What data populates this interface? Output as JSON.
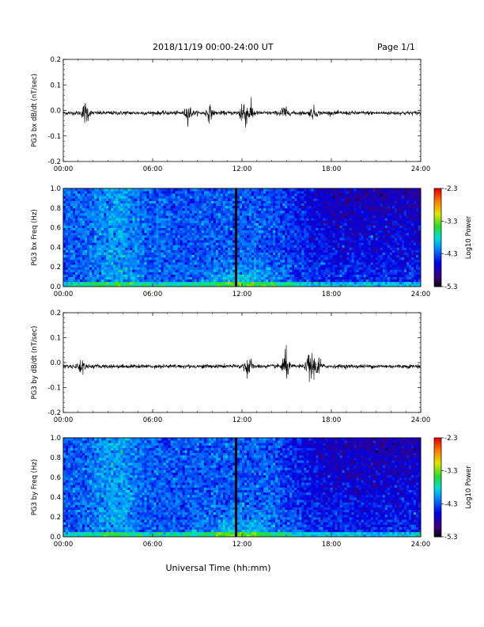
{
  "header": {
    "title": "2018/11/19  00:00-24:00 UT",
    "page": "Page 1/1"
  },
  "xlabel": "Universal Time (hh:mm)",
  "colorbar": {
    "label": "Log10 Power",
    "ticks": [
      "-2.3",
      "-3.3",
      "-4.3",
      "-5.3"
    ],
    "range": [
      -5.3,
      -2.3
    ]
  },
  "chart_data": [
    {
      "type": "line",
      "ylabel": "PG3 bx dB/dt (nT/sec)",
      "xlim": [
        0,
        24
      ],
      "ylim": [
        -0.2,
        0.2
      ],
      "x_ticks": [
        "00:00",
        "06:00",
        "12:00",
        "18:00",
        "24:00"
      ],
      "y_ticks": [
        "0.2",
        "0.1",
        "0.0",
        "-0.1",
        "-0.2"
      ],
      "baseline": -0.01,
      "bursts": [
        {
          "t": 1.5,
          "amp": 0.02
        },
        {
          "t": 8.4,
          "amp": 0.015
        },
        {
          "t": 9.8,
          "amp": 0.012
        },
        {
          "t": 12.1,
          "amp": 0.035
        },
        {
          "t": 12.6,
          "amp": 0.015
        },
        {
          "t": 14.8,
          "amp": 0.012
        },
        {
          "t": 16.8,
          "amp": 0.01
        }
      ]
    },
    {
      "type": "heatmap",
      "ylabel": "PG3 bx Freq (Hz)",
      "xlim": [
        0,
        24
      ],
      "ylim": [
        0,
        1.0
      ],
      "x_ticks": [
        "00:00",
        "06:00",
        "12:00",
        "18:00",
        "24:00"
      ],
      "y_ticks": [
        "1.0",
        "0.8",
        "0.6",
        "0.4",
        "0.2",
        "0.0"
      ],
      "gap_time": 11.6
    },
    {
      "type": "line",
      "ylabel": "PG3 by dB/dt (nT/sec)",
      "xlim": [
        0,
        24
      ],
      "ylim": [
        -0.2,
        0.2
      ],
      "x_ticks": [
        "00:00",
        "06:00",
        "12:00",
        "18:00",
        "24:00"
      ],
      "y_ticks": [
        "0.2",
        "0.1",
        "0.0",
        "-0.1",
        "-0.2"
      ],
      "baseline": -0.015,
      "bursts": [
        {
          "t": 1.2,
          "amp": 0.015
        },
        {
          "t": 12.4,
          "amp": 0.025
        },
        {
          "t": 14.9,
          "amp": 0.03
        },
        {
          "t": 16.6,
          "amp": 0.035
        },
        {
          "t": 17.1,
          "amp": 0.02
        }
      ]
    },
    {
      "type": "heatmap",
      "ylabel": "PG3 by Freq (Hz)",
      "xlim": [
        0,
        24
      ],
      "ylim": [
        0,
        1.0
      ],
      "x_ticks": [
        "00:00",
        "06:00",
        "12:00",
        "18:00",
        "24:00"
      ],
      "y_ticks": [
        "1.0",
        "0.8",
        "0.6",
        "0.4",
        "0.2",
        "0.0"
      ],
      "gap_time": 11.6
    }
  ]
}
